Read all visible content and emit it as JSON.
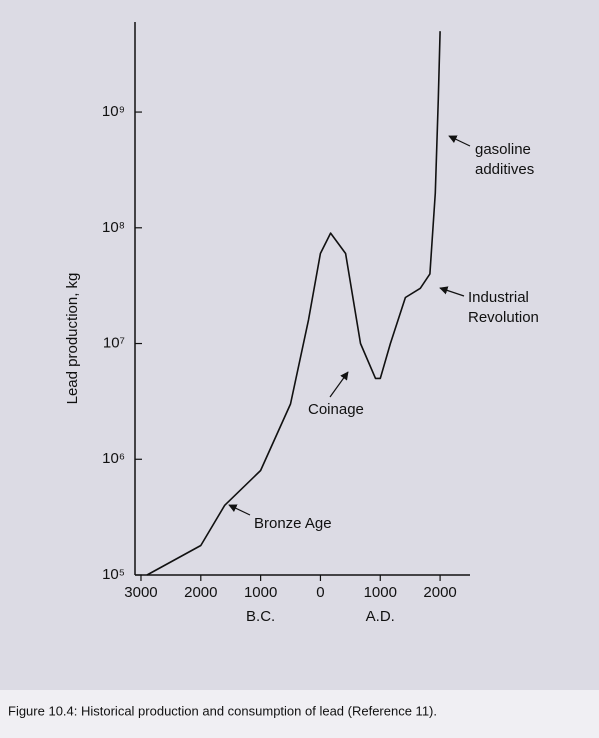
{
  "chart_data": {
    "type": "line",
    "y_label": "Lead production, kg",
    "log_y": true,
    "color": "#111111",
    "xlim": [
      -3100,
      2500
    ],
    "xticks": [
      {
        "value": -3000,
        "label": "3000"
      },
      {
        "value": -2000,
        "label": "2000"
      },
      {
        "value": -1000,
        "label": "1000"
      },
      0,
      1000,
      2000
    ],
    "era_labels": [
      "B.C.",
      "A.D."
    ],
    "era_positions": [
      -1000,
      1000
    ],
    "ylim": [
      100000,
      6000000000
    ],
    "yticks": [
      {
        "value": 100000,
        "label": "10⁵"
      },
      {
        "value": 1000000,
        "label": "10⁶"
      },
      {
        "value": 10000000,
        "label": "10⁷"
      },
      {
        "value": 100000000,
        "label": "10⁸"
      },
      {
        "value": 1000000000,
        "label": "10⁹"
      }
    ],
    "x": [
      -2900,
      -2000,
      -1600,
      -1000,
      -500,
      -200,
      0,
      170,
      420,
      670,
      920,
      1000,
      1170,
      1420,
      1670,
      1830,
      1920,
      1970,
      2000
    ],
    "values": [
      100000,
      180000,
      400000,
      800000,
      3000000,
      16000000,
      60000000,
      90000000,
      60000000,
      10000000,
      5000000,
      5000000,
      10000000,
      25000000,
      30000000,
      40000000,
      200000000,
      1300000000,
      5000000000
    ],
    "annotations": [
      {
        "text": [
          "gasoline",
          "additives"
        ]
      },
      {
        "text": [
          "Industrial",
          "Revolution"
        ]
      },
      {
        "text": [
          "Coinage"
        ]
      },
      {
        "text": [
          "Bronze Age"
        ]
      }
    ]
  },
  "caption": "Figure 10.4:   Historical production and consumption of lead (Reference 11)."
}
